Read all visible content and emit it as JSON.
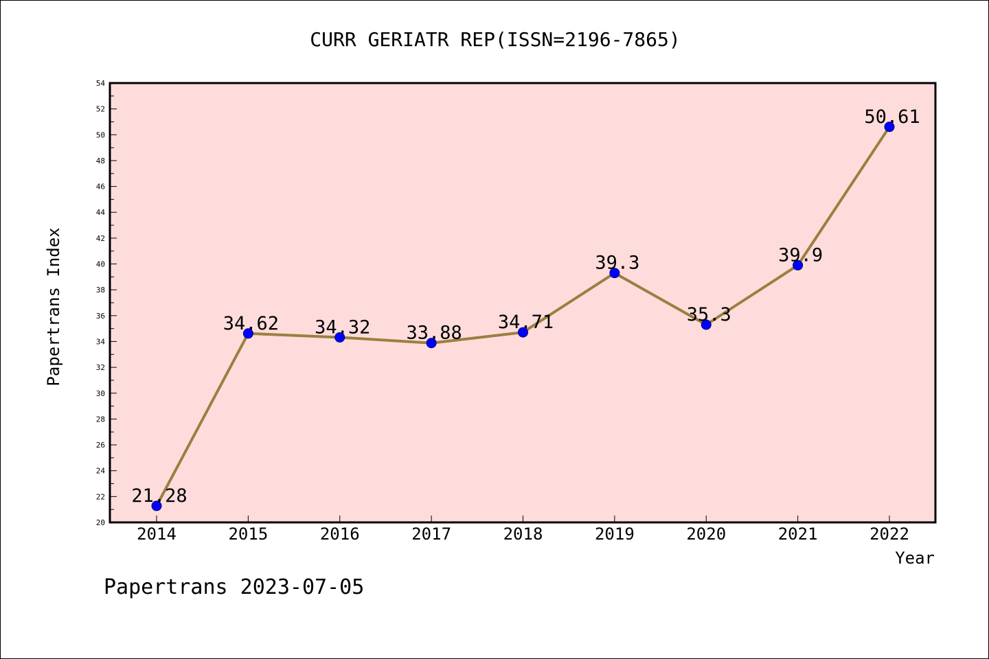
{
  "chart_data": {
    "type": "line",
    "title": "CURR GERIATR REP(ISSN=2196-7865)",
    "xlabel": "Year",
    "ylabel": "Papertrans Index",
    "footer": "Papertrans 2023-07-05",
    "categories": [
      "2014",
      "2015",
      "2016",
      "2017",
      "2018",
      "2019",
      "2020",
      "2021",
      "2022"
    ],
    "values": [
      21.28,
      34.62,
      34.32,
      33.88,
      34.71,
      39.3,
      35.3,
      39.9,
      50.61
    ],
    "data_labels": [
      "21.28",
      "34.62",
      "34.32",
      "33.88",
      "34.71",
      "39.3",
      "35.3",
      "39.9",
      "50.61"
    ],
    "ylim": [
      20,
      54
    ],
    "y_ticks": [
      "20",
      "22",
      "24",
      "26",
      "28",
      "30",
      "32",
      "34",
      "36",
      "38",
      "40",
      "42",
      "44",
      "46",
      "48",
      "50",
      "52",
      "54"
    ],
    "grid": false,
    "legend": "none",
    "colors": {
      "plot_background": "#ffdcdc",
      "line": "#998040",
      "marker": "#0000ff",
      "axis": "#000000"
    }
  }
}
